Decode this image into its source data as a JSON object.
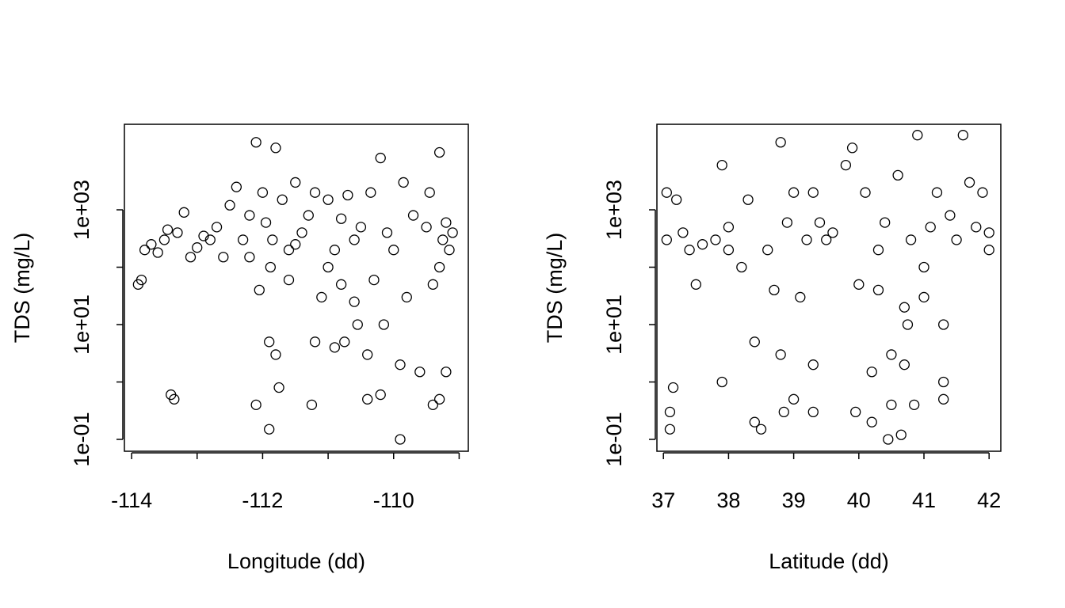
{
  "chart_data": [
    {
      "type": "scatter",
      "xlabel": "Longitude (dd)",
      "ylabel": "TDS (mg/L)",
      "log_y": true,
      "color": "#000000",
      "xlim": [
        -114.11,
        -108.86
      ],
      "ylim": [
        0.0621,
        30900
      ],
      "xticks": [
        -114,
        {
          "value": -113,
          "label": null
        },
        -112,
        {
          "value": -111,
          "label": null
        },
        -110,
        {
          "value": -109,
          "label": null
        }
      ],
      "yticks": [
        {
          "value": 0.1,
          "label": "1e-01"
        },
        {
          "value": 1,
          "label": null
        },
        {
          "value": 10,
          "label": "1e+01"
        },
        {
          "value": 100,
          "label": null
        },
        {
          "value": 1000,
          "label": "1e+03"
        }
      ],
      "x": [
        -113.9,
        -113.85,
        -113.8,
        -113.7,
        -113.6,
        -113.5,
        -113.45,
        -113.4,
        -113.35,
        -113.3,
        -113.2,
        -113.1,
        -113,
        -112.9,
        -112.8,
        -112.7,
        -112.6,
        -112.5,
        -112.4,
        -112.3,
        -112.2,
        -112.1,
        -112.1,
        -112.05,
        -112,
        -111.95,
        -111.9,
        -111.9,
        -111.88,
        -111.85,
        -111.8,
        -111.8,
        -111.75,
        -111.7,
        -111.6,
        -111.5,
        -111.4,
        -111.3,
        -111.25,
        -111.2,
        -111.2,
        -111.1,
        -111.0,
        -110.9,
        -110.9,
        -110.8,
        -110.75,
        -110.7,
        -110.6,
        -110.55,
        -110.5,
        -110.4,
        -110.4,
        -110.35,
        -110.3,
        -110.2,
        -110.2,
        -110.15,
        -110,
        -109.9,
        -109.9,
        -109.85,
        -109.8,
        -109.7,
        -109.6,
        -109.5,
        -109.45,
        -109.4,
        -109.3,
        -109.3,
        -109.25,
        -109.2,
        -109.2,
        -109.15,
        -109.1,
        -109.3,
        -109.4,
        -110.6,
        -110.1,
        -111.5,
        -111.6,
        -112.2,
        -111.0,
        -110.8
      ],
      "values": [
        50,
        60,
        200,
        250,
        180,
        300,
        450,
        0.6,
        0.5,
        400,
        900,
        150,
        220,
        350,
        300,
        500,
        150,
        1200,
        2500,
        300,
        800,
        15000,
        0.4,
        40,
        2000,
        600,
        0.15,
        5,
        100,
        300,
        12000,
        3,
        0.8,
        1500,
        200,
        3000,
        400,
        800,
        0.4,
        2000,
        5,
        30,
        1500,
        4,
        200,
        50,
        5,
        1800,
        25,
        10,
        500,
        3,
        0.5,
        2000,
        60,
        8000,
        0.6,
        10,
        200,
        0.1,
        2,
        3000,
        30,
        800,
        1.5,
        500,
        2000,
        0.4,
        10000,
        0.5,
        300,
        1.5,
        600,
        200,
        400,
        100,
        50,
        300,
        400,
        250,
        60,
        150,
        100,
        700
      ]
    },
    {
      "type": "scatter",
      "xlabel": "Latitude (dd)",
      "ylabel": "TDS (mg/L)",
      "log_y": true,
      "color": "#000000",
      "xlim": [
        36.9,
        42.18
      ],
      "ylim": [
        0.0621,
        30900
      ],
      "xticks": [
        37,
        38,
        39,
        40,
        41,
        42
      ],
      "yticks": [
        {
          "value": 0.1,
          "label": "1e-01"
        },
        {
          "value": 1,
          "label": null
        },
        {
          "value": 10,
          "label": "1e+01"
        },
        {
          "value": 100,
          "label": null
        },
        {
          "value": 1000,
          "label": "1e+03"
        }
      ],
      "x": [
        37.05,
        37.05,
        37.1,
        37.1,
        37.15,
        37.2,
        37.3,
        37.4,
        37.5,
        37.6,
        37.8,
        37.9,
        37.9,
        38.0,
        38.2,
        38.3,
        38.4,
        38.4,
        38.5,
        38.6,
        38.7,
        38.8,
        38.8,
        38.85,
        38.9,
        39.0,
        39.0,
        39.1,
        39.2,
        39.3,
        39.3,
        39.3,
        39.4,
        39.6,
        39.8,
        39.9,
        39.95,
        40.0,
        40.1,
        40.2,
        40.2,
        40.3,
        40.4,
        40.45,
        40.5,
        40.5,
        40.6,
        40.65,
        40.7,
        40.7,
        40.75,
        40.8,
        40.85,
        40.9,
        41.0,
        41.1,
        41.2,
        41.3,
        41.3,
        41.3,
        41.4,
        41.5,
        41.6,
        41.7,
        41.8,
        41.9,
        42.0,
        42.0,
        41.0,
        40.3,
        39.5,
        38.0
      ],
      "values": [
        2000,
        300,
        0.3,
        0.15,
        0.8,
        1500,
        400,
        200,
        50,
        250,
        300,
        6000,
        1,
        200,
        100,
        1500,
        5,
        0.2,
        0.15,
        200,
        40,
        15000,
        3,
        0.3,
        600,
        2000,
        0.5,
        30,
        300,
        2000,
        2,
        0.3,
        600,
        400,
        6000,
        12000,
        0.3,
        50,
        2000,
        1.5,
        0.2,
        200,
        600,
        0.1,
        3,
        0.4,
        4000,
        0.12,
        2,
        20,
        10,
        300,
        0.4,
        20000,
        100,
        500,
        2000,
        0.5,
        1,
        10,
        800,
        300,
        20000,
        3000,
        500,
        2000,
        400,
        200,
        30,
        40,
        300,
        500
      ]
    }
  ]
}
